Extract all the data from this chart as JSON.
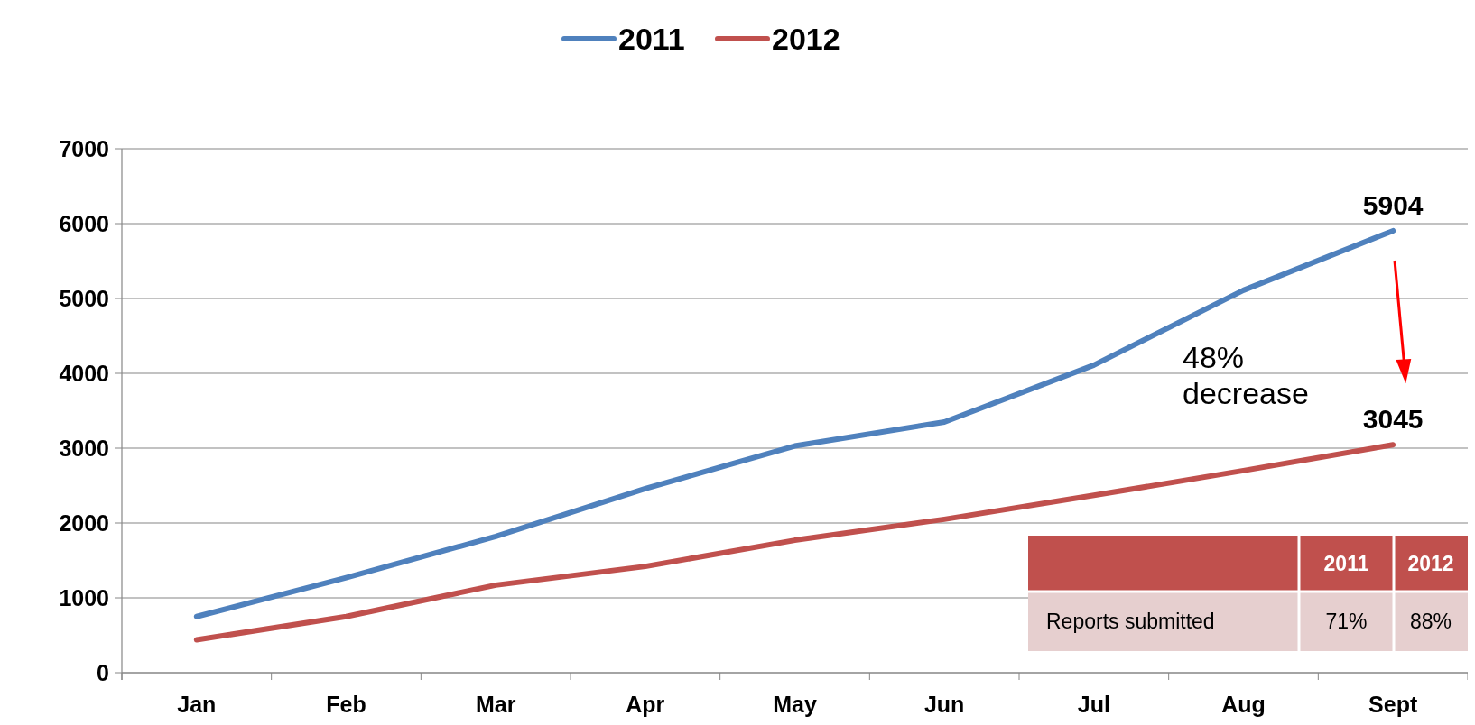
{
  "chart_data": {
    "type": "line",
    "categories": [
      "Jan",
      "Feb",
      "Mar",
      "Apr",
      "May",
      "Jun",
      "Jul",
      "Aug",
      "Sept"
    ],
    "series": [
      {
        "name": "2011",
        "color": "#4f81bd",
        "values": [
          750,
          1270,
          1820,
          2460,
          3030,
          3350,
          4110,
          5110,
          5904
        ],
        "value_labels": [
          null,
          null,
          null,
          null,
          null,
          null,
          null,
          null,
          "5904"
        ]
      },
      {
        "name": "2012",
        "color": "#c0504d",
        "values": [
          440,
          750,
          1170,
          1420,
          1770,
          2050,
          2370,
          2700,
          3045
        ],
        "value_labels": [
          null,
          null,
          null,
          null,
          null,
          null,
          null,
          null,
          "3045"
        ]
      }
    ],
    "ylim": [
      0,
      7000
    ],
    "yticks": [
      0,
      1000,
      2000,
      3000,
      4000,
      5000,
      6000,
      7000
    ],
    "grid": "y",
    "legend": "top",
    "marker": "none",
    "line_style": "solid",
    "annotations": [
      "48% decrease",
      "Reports submitted",
      "71%",
      "88%"
    ]
  }
}
